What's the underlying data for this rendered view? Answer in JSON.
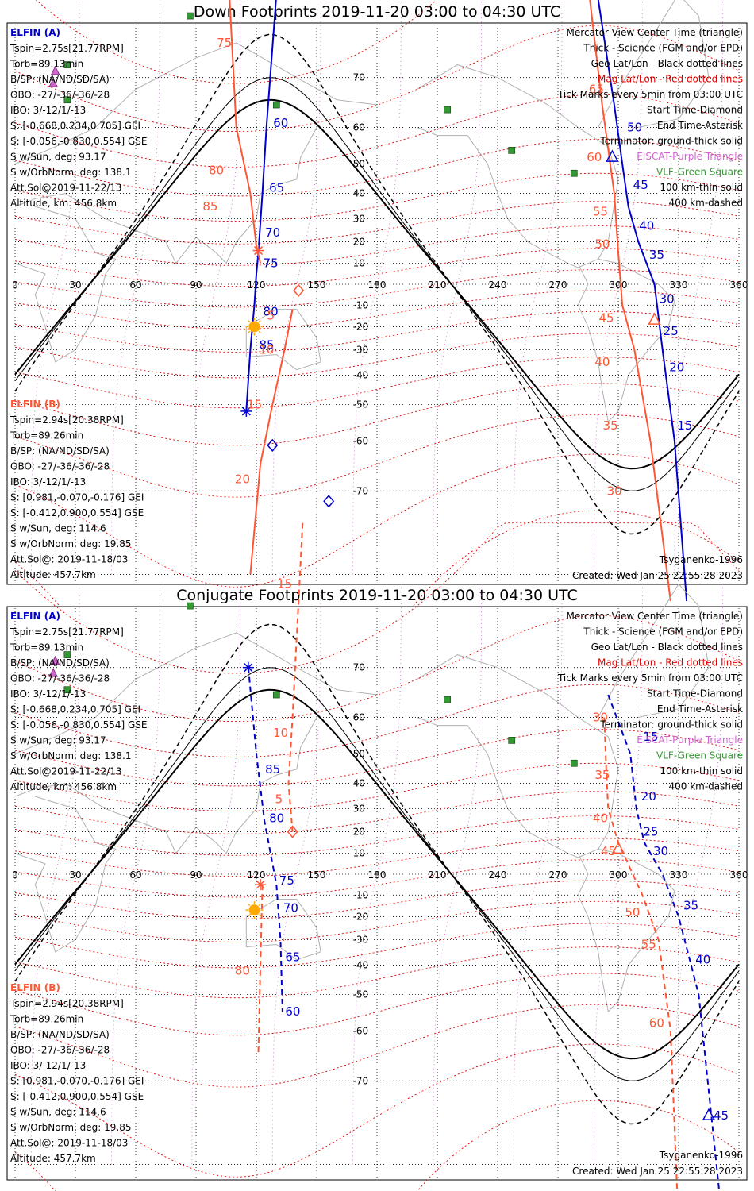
{
  "panels": [
    {
      "title": "Down Footprints 2019-11-20 03:00 to 04:30 UTC",
      "elfin_a": {
        "label": "ELFIN (A)",
        "lines": [
          "Tspin=2.75s[21.77RPM]",
          "Torb=89.13min",
          "B/SP: (NA/ND/SD/SA)",
          "OBO: -27/-36/-36/-28",
          "IBO: 3/-12/1/-13",
          "S: [-0.668,0.234,0.705] GEI",
          "S: [-0.056,-0.830,0.554] GSE",
          "S w/Sun, deg: 93.17",
          "S w/OrbNorm, deg: 138.1",
          "Att.Sol@2019-11-22/13",
          "Altitude, km: 456.8km"
        ]
      },
      "elfin_b": {
        "label": "ELFIN (B)",
        "lines": [
          "Tspin=2.94s[20.38RPM]",
          "Torb=89.26min",
          "B/SP: (NA/ND/SD/SA)",
          "OBO: -27/-36/-36/-28",
          "IBO: 3/-12/1/-13",
          "S: [0.981,-0.070,-0.176] GEI",
          "S: [-0.412,0.900,0.554] GSE",
          "S w/Sun, deg: 114.6",
          "S w/OrbNorm, deg: 19.85",
          "Att.Sol@: 2019-11-18/03",
          "Altitude: 457.7km"
        ]
      },
      "legend": [
        {
          "text": "Mercator View Center Time (triangle)",
          "color": "#000000"
        },
        {
          "text": "Thick - Science (FGM and/or EPD)",
          "color": "#000000"
        },
        {
          "text": "Geo Lat/Lon - Black dotted lines",
          "color": "#000000"
        },
        {
          "text": "Mag Lat/Lon - Red dotted lines",
          "color": "#e00000"
        },
        {
          "text": "Tick Marks every 5min from 03:00 UTC",
          "color": "#000000"
        },
        {
          "text": "Start Time-Diamond",
          "color": "#000000"
        },
        {
          "text": "End Time-Asterisk",
          "color": "#000000"
        },
        {
          "text": "Terminator: ground-thick solid",
          "color": "#000000"
        },
        {
          "text": "EISCAT-Purple Triangle",
          "color": "#cc66cc"
        },
        {
          "text": "VLF-Green Square",
          "color": "#339933"
        },
        {
          "text": "100 km-thin solid",
          "color": "#000000"
        },
        {
          "text": "400 km-dashed",
          "color": "#000000"
        }
      ],
      "model": "Tsyganenko-1996",
      "created": "Created: Wed Jan 25 22:55:28 2023",
      "a_ticks": [
        {
          "t": "60",
          "lon": 126,
          "lat": 61
        },
        {
          "t": "65",
          "lon": 124,
          "lat": 42
        },
        {
          "t": "70",
          "lon": 122,
          "lat": 24
        },
        {
          "t": "75",
          "lon": 121,
          "lat": 10
        },
        {
          "t": "80",
          "lon": 121,
          "lat": -13
        },
        {
          "t": "85",
          "lon": 119,
          "lat": -28
        },
        {
          "t": "50",
          "lon": 302,
          "lat": 60
        },
        {
          "t": "45",
          "lon": 305,
          "lat": 43
        },
        {
          "t": "40",
          "lon": 308,
          "lat": 27
        },
        {
          "t": "35",
          "lon": 313,
          "lat": 14
        },
        {
          "t": "30",
          "lon": 318,
          "lat": -7
        },
        {
          "t": "25",
          "lon": 320,
          "lat": -22
        },
        {
          "t": "20",
          "lon": 323,
          "lat": -37
        },
        {
          "t": "15",
          "lon": 327,
          "lat": -56
        }
      ],
      "b_ticks": [
        {
          "t": "75",
          "lon": 109,
          "lat": 75
        },
        {
          "t": "80",
          "lon": 105,
          "lat": 48
        },
        {
          "t": "85",
          "lon": 102,
          "lat": 35
        },
        {
          "t": "5",
          "lon": 134,
          "lat": -15
        },
        {
          "t": "10",
          "lon": 130,
          "lat": -30
        },
        {
          "t": "15",
          "lon": 124,
          "lat": -50
        },
        {
          "t": "20",
          "lon": 118,
          "lat": -68
        },
        {
          "t": "65",
          "lon": 294,
          "lat": 68
        },
        {
          "t": "60",
          "lon": 293,
          "lat": 52
        },
        {
          "t": "55",
          "lon": 296,
          "lat": 33
        },
        {
          "t": "50",
          "lon": 297,
          "lat": 19
        },
        {
          "t": "45",
          "lon": 299,
          "lat": -16
        },
        {
          "t": "40",
          "lon": 297,
          "lat": -35
        },
        {
          "t": "35",
          "lon": 301,
          "lat": -56
        },
        {
          "t": "30",
          "lon": 303,
          "lat": -70
        }
      ]
    },
    {
      "title": "Conjugate Footprints 2019-11-20 03:00 to 04:30 UTC",
      "elfin_a": {
        "label": "ELFIN (A)",
        "lines": [
          "Tspin=2.75s[21.77RPM]",
          "Torb=89.13min",
          "B/SP: (NA/ND/SD/SA)",
          "OBO: -27/-36/-36/-28",
          "IBO: 3/-12/1/-13",
          "S: [-0.668,0.234,0.705] GEI",
          "S: [-0.056,-0.830,0.554] GSE",
          "S w/Sun, deg: 93.17",
          "S w/OrbNorm, deg: 138.1",
          "Att.Sol@2019-11-22/13",
          "Altitude, km: 456.8km"
        ]
      },
      "elfin_b": {
        "label": "ELFIN (B)",
        "lines": [
          "Tspin=2.94s[20.38RPM]",
          "Torb=89.26min",
          "B/SP: (NA/ND/SD/SA)",
          "OBO: -27/-36/-36/-28",
          "IBO: 3/-12/1/-13",
          "S: [0.981,-0.070,-0.176] GEI",
          "S: [-0.412,0.900,0.554] GSE",
          "S w/Sun, deg: 114.6",
          "S w/OrbNorm, deg: 19.85",
          "Att.Sol@: 2019-11-18/03",
          "Altitude: 457.7km"
        ]
      },
      "legend": [
        {
          "text": "Mercator View Center Time (triangle)",
          "color": "#000000"
        },
        {
          "text": "Thick - Science (FGM and/or EPD)",
          "color": "#000000"
        },
        {
          "text": "Geo Lat/Lon - Black dotted lines",
          "color": "#000000"
        },
        {
          "text": "Mag Lat/Lon - Red dotted lines",
          "color": "#e00000"
        },
        {
          "text": "Tick Marks every 5min from 03:00 UTC",
          "color": "#000000"
        },
        {
          "text": "Start Time-Diamond",
          "color": "#000000"
        },
        {
          "text": "End Time-Asterisk",
          "color": "#000000"
        },
        {
          "text": "Terminator: ground-thick solid",
          "color": "#000000"
        },
        {
          "text": "EISCAT-Purple Triangle",
          "color": "#cc66cc"
        },
        {
          "text": "VLF-Green Square",
          "color": "#339933"
        },
        {
          "text": "100 km-thin solid",
          "color": "#000000"
        },
        {
          "text": "400 km-dashed",
          "color": "#000000"
        }
      ],
      "model": "Tsyganenko-1996",
      "created": "Created: Wed Jan 25 22:55:28 2023",
      "a_ticks": [
        {
          "t": "85",
          "lon": 122,
          "lat": 45
        },
        {
          "t": "80",
          "lon": 124,
          "lat": 26
        },
        {
          "t": "75",
          "lon": 129,
          "lat": -3
        },
        {
          "t": "70",
          "lon": 131,
          "lat": -16
        },
        {
          "t": "65",
          "lon": 132,
          "lat": -37
        },
        {
          "t": "60",
          "lon": 132,
          "lat": -55
        },
        {
          "t": "15",
          "lon": 310,
          "lat": 55
        },
        {
          "t": "20",
          "lon": 309,
          "lat": 35
        },
        {
          "t": "25",
          "lon": 310,
          "lat": 20
        },
        {
          "t": "30",
          "lon": 315,
          "lat": 11
        },
        {
          "t": "35",
          "lon": 330,
          "lat": -15
        },
        {
          "t": "40",
          "lon": 336,
          "lat": -38
        },
        {
          "t": "45",
          "lon": 345,
          "lat": -75
        }
      ],
      "b_ticks": [
        {
          "t": "15",
          "lon": 139,
          "lat": 80
        },
        {
          "t": "10",
          "lon": 137,
          "lat": 56
        },
        {
          "t": "5",
          "lon": 138,
          "lat": 34
        },
        {
          "t": "80",
          "lon": 118,
          "lat": -42
        },
        {
          "t": "30",
          "lon": 296,
          "lat": 60
        },
        {
          "t": "35",
          "lon": 297,
          "lat": 43
        },
        {
          "t": "40",
          "lon": 296,
          "lat": 26
        },
        {
          "t": "45",
          "lon": 300,
          "lat": 11
        },
        {
          "t": "50",
          "lon": 312,
          "lat": -18
        },
        {
          "t": "55",
          "lon": 320,
          "lat": -32
        },
        {
          "t": "60",
          "lon": 324,
          "lat": -58
        }
      ]
    }
  ],
  "lon_axis": {
    "min": 0,
    "max": 360,
    "ticks": [
      0,
      30,
      60,
      90,
      120,
      150,
      180,
      210,
      240,
      270,
      300,
      330,
      360
    ]
  },
  "lat_axis": {
    "ticks": [
      70,
      60,
      50,
      40,
      30,
      20,
      10,
      -10,
      -20,
      -30,
      -40,
      -50,
      -60,
      -70
    ]
  },
  "colors": {
    "elfin_a": "#0000cc",
    "elfin_b": "#ff5533",
    "mag_grid": "#e00000",
    "eiscat": "#cc66cc",
    "vlf": "#339933",
    "sun": "#ffaa00",
    "coast": "#b0b0b0"
  },
  "vlf_stations": [
    {
      "lon": 87,
      "lat": 78
    },
    {
      "lon": 26,
      "lat": 72
    },
    {
      "lon": 26,
      "lat": 66
    },
    {
      "lon": 130,
      "lat": 65
    },
    {
      "lon": 215,
      "lat": 64
    },
    {
      "lon": 247,
      "lat": 54
    },
    {
      "lon": 278,
      "lat": 47
    }
  ],
  "eiscat_sites": [
    {
      "lon": 20,
      "lat": 71
    },
    {
      "lon": 19,
      "lat": 69
    }
  ],
  "sun": {
    "lon": 119,
    "lat": -20
  }
}
